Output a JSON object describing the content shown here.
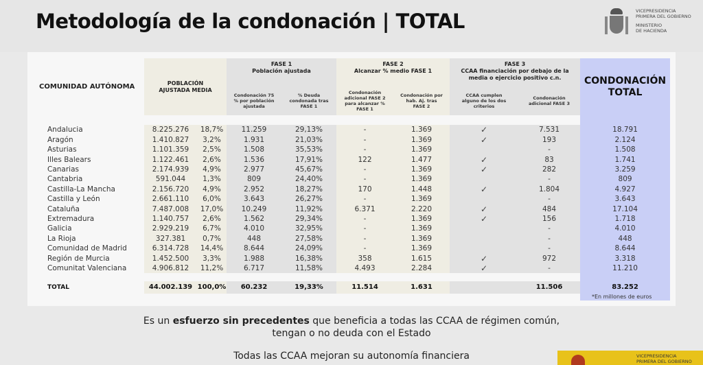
{
  "title": "Metodología de la condonación | TOTAL",
  "government": {
    "line1": "Vicepresidencia",
    "line2": "Primera del Gobierno",
    "line3": "Ministerio",
    "line4": "de Hacienda"
  },
  "header": {
    "comunidad": "COMUNIDAD AUTÓNOMA",
    "poblacion": "POBLACIÓN AJUSTADA MEDIA",
    "fase1_title": "FASE 1",
    "fase1_subtitle": "Población ajustada",
    "fase1_col1": "Condonación 75 % por población ajustada",
    "fase1_col2": "% Deuda condonada tras FASE 1",
    "fase2_title": "FASE 2",
    "fase2_subtitle": "Alcanzar % medio FASE 1",
    "fase2_col1": "Condonación adicional FASE 2 para alcanzar % FASE 1",
    "fase2_col2": "Condonación por hab. Aj. tras FASE 2",
    "fase3_title": "FASE 3",
    "fase3_subtitle": "CCAA financiación por debajo de la media o ejercicio positivo c.n.",
    "fase3_col1": "CCAA cumplen alguno de los dos criterios",
    "fase3_col2": "Condonación adicional FASE 3",
    "total": "CONDONACIÓN TOTAL"
  },
  "rows": [
    {
      "name": "Andalucia",
      "pob": "8.225.276",
      "pct": "18,7%",
      "f1": "11.259",
      "f1pct": "29,13%",
      "f2": "-",
      "f2hab": "1.369",
      "check": "✓",
      "f3": "7.531",
      "total": "18.791"
    },
    {
      "name": "Aragón",
      "pob": "1.410.827",
      "pct": "3,2%",
      "f1": "1.931",
      "f1pct": "21,03%",
      "f2": "-",
      "f2hab": "1.369",
      "check": "✓",
      "f3": "193",
      "total": "2.124"
    },
    {
      "name": "Asturias",
      "pob": "1.101.359",
      "pct": "2,5%",
      "f1": "1.508",
      "f1pct": "35,53%",
      "f2": "-",
      "f2hab": "1.369",
      "check": "",
      "f3": "-",
      "total": "1.508"
    },
    {
      "name": "Illes Balears",
      "pob": "1.122.461",
      "pct": "2,6%",
      "f1": "1.536",
      "f1pct": "17,91%",
      "f2": "122",
      "f2hab": "1.477",
      "check": "✓",
      "f3": "83",
      "total": "1.741"
    },
    {
      "name": "Canarias",
      "pob": "2.174.939",
      "pct": "4,9%",
      "f1": "2.977",
      "f1pct": "45,67%",
      "f2": "-",
      "f2hab": "1.369",
      "check": "✓",
      "f3": "282",
      "total": "3.259"
    },
    {
      "name": "Cantabria",
      "pob": "591.044",
      "pct": "1,3%",
      "f1": "809",
      "f1pct": "24,40%",
      "f2": "-",
      "f2hab": "1.369",
      "check": "",
      "f3": "-",
      "total": "809"
    },
    {
      "name": "Castilla-La Mancha",
      "pob": "2.156.720",
      "pct": "4,9%",
      "f1": "2.952",
      "f1pct": "18,27%",
      "f2": "170",
      "f2hab": "1.448",
      "check": "✓",
      "f3": "1.804",
      "total": "4.927"
    },
    {
      "name": "Castilla y León",
      "pob": "2.661.110",
      "pct": "6,0%",
      "f1": "3.643",
      "f1pct": "26,27%",
      "f2": "-",
      "f2hab": "1.369",
      "check": "",
      "f3": "-",
      "total": "3.643"
    },
    {
      "name": "Cataluña",
      "pob": "7.487.008",
      "pct": "17,0%",
      "f1": "10.249",
      "f1pct": "11,92%",
      "f2": "6.371",
      "f2hab": "2.220",
      "check": "✓",
      "f3": "484",
      "total": "17.104"
    },
    {
      "name": "Extremadura",
      "pob": "1.140.757",
      "pct": "2,6%",
      "f1": "1.562",
      "f1pct": "29,34%",
      "f2": "-",
      "f2hab": "1.369",
      "check": "✓",
      "f3": "156",
      "total": "1.718"
    },
    {
      "name": "Galicia",
      "pob": "2.929.219",
      "pct": "6,7%",
      "f1": "4.010",
      "f1pct": "32,95%",
      "f2": "-",
      "f2hab": "1.369",
      "check": "",
      "f3": "-",
      "total": "4.010"
    },
    {
      "name": "La Rioja",
      "pob": "327.381",
      "pct": "0,7%",
      "f1": "448",
      "f1pct": "27,58%",
      "f2": "-",
      "f2hab": "1.369",
      "check": "",
      "f3": "-",
      "total": "448"
    },
    {
      "name": "Comunidad de Madrid",
      "pob": "6.314.728",
      "pct": "14,4%",
      "f1": "8.644",
      "f1pct": "24,09%",
      "f2": "-",
      "f2hab": "1.369",
      "check": "",
      "f3": "-",
      "total": "8.644"
    },
    {
      "name": "Región de Murcia",
      "pob": "1.452.500",
      "pct": "3,3%",
      "f1": "1.988",
      "f1pct": "16,38%",
      "f2": "358",
      "f2hab": "1.615",
      "check": "✓",
      "f3": "972",
      "total": "3.318"
    },
    {
      "name": "Comunitat Valenciana",
      "pob": "4.906.812",
      "pct": "11,2%",
      "f1": "6.717",
      "f1pct": "11,58%",
      "f2": "4.493",
      "f2hab": "2.284",
      "check": "✓",
      "f3": "-",
      "total": "11.210"
    }
  ],
  "totals": {
    "name": "TOTAL",
    "pob": "44.002.139",
    "pct": "100,0%",
    "f1": "60.232",
    "f1pct": "19,33%",
    "f2": "11.514",
    "f2hab": "1.631",
    "check": "",
    "f3": "11.506",
    "total": "83.252"
  },
  "note": "*En millones de euros",
  "message": {
    "pre": "Es un ",
    "bold": "esfuerzo sin precedentes",
    "post": " que beneficia a todas las CCAA de régimen común,",
    "line2": "tengan o no deuda con el Estado",
    "line3": "Todas las CCAA mejoran su autonomía financiera"
  },
  "footer_logo": {
    "line1": "Vicepresidencia",
    "line2": "Primera del Gobierno"
  }
}
